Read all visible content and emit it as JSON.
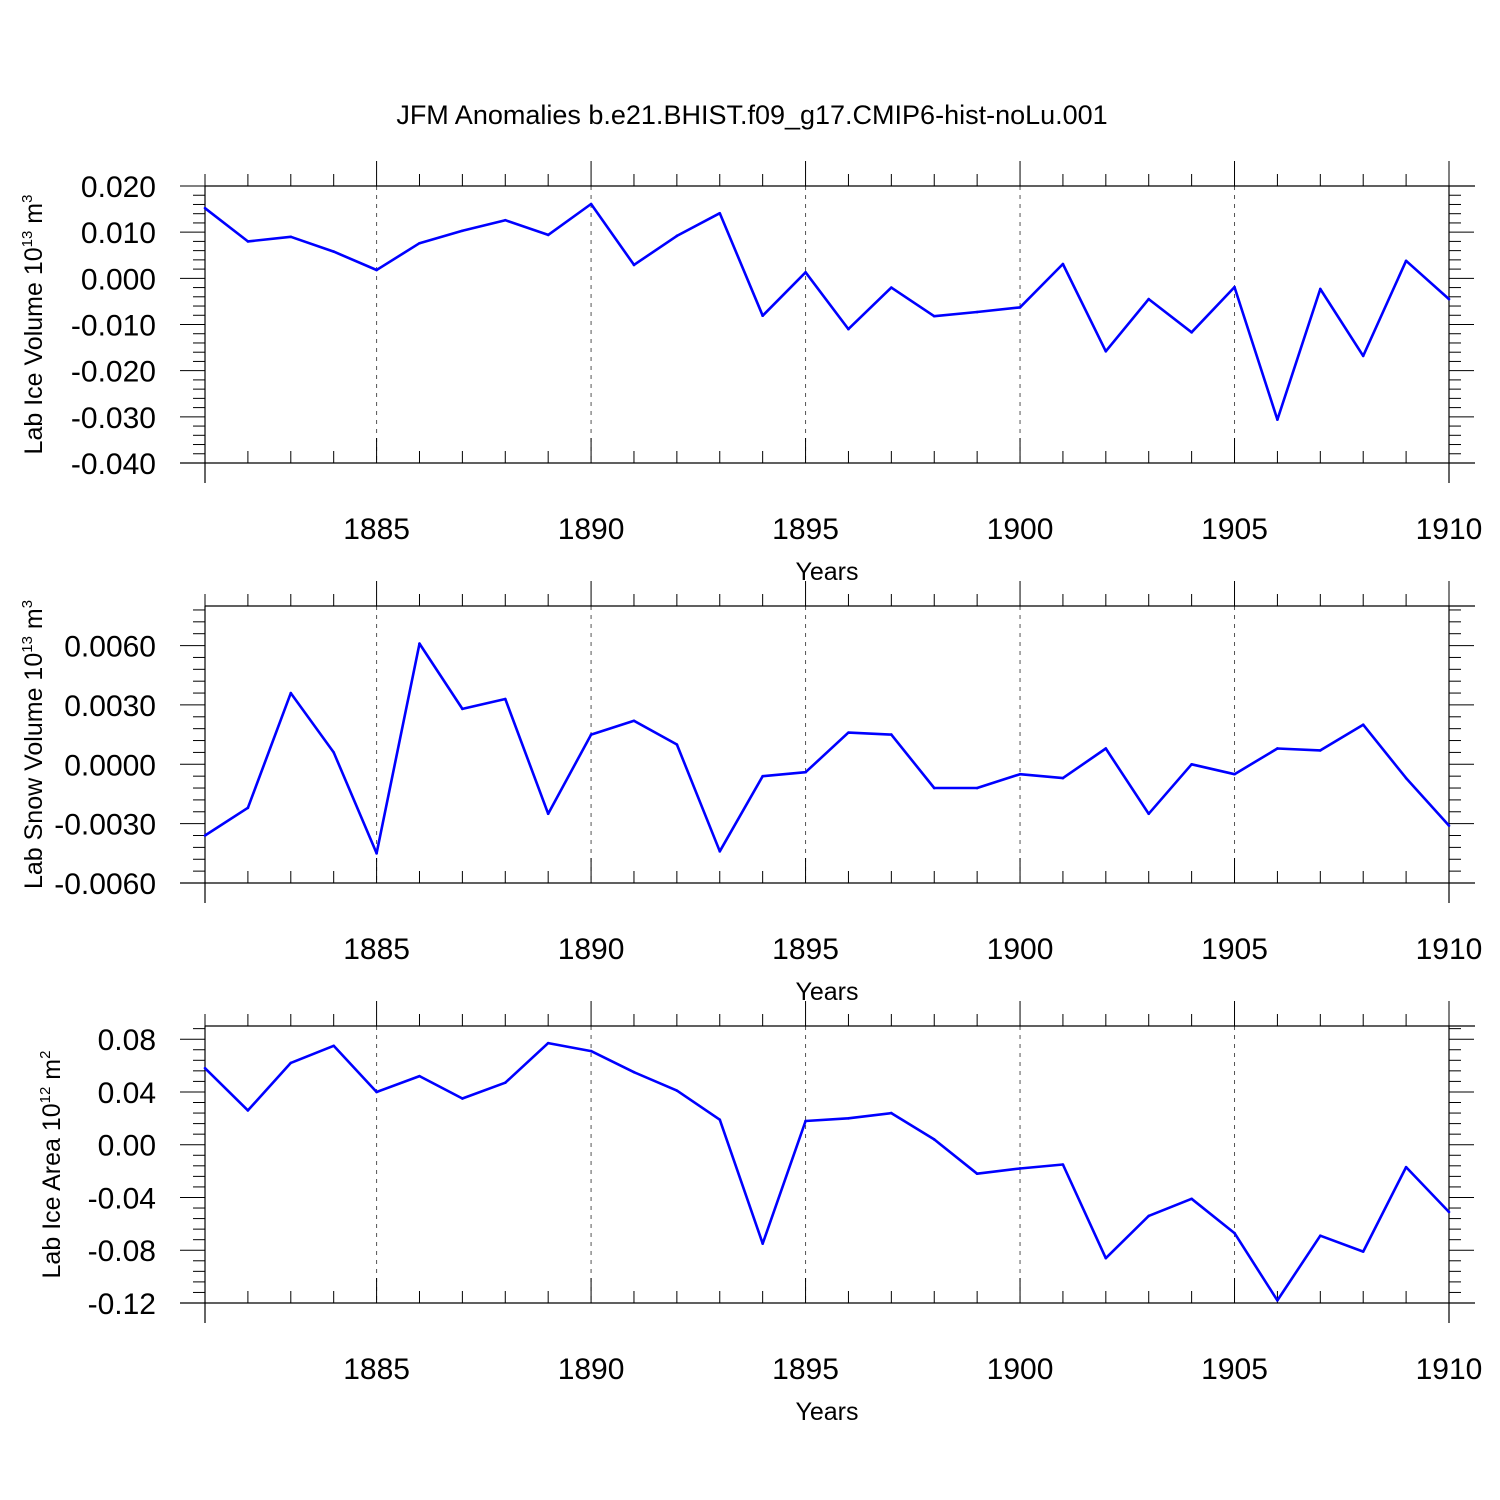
{
  "title": "JFM Anomalies b.e21.BHIST.f09_g17.CMIP6-hist-noLu.001",
  "chart_data": [
    {
      "type": "line",
      "title": "JFM Anomalies b.e21.BHIST.f09_g17.CMIP6-hist-noLu.001",
      "ylabel_main": "Lab Ice Volume 10",
      "ylabel_exp": "13",
      "ylabel_unit": " m",
      "ylabel_unit_exp": "3",
      "xlabel": "Years",
      "xlim": [
        1881,
        1910
      ],
      "ylim": [
        -0.04,
        0.02
      ],
      "xticks": [
        1885,
        1890,
        1895,
        1900,
        1905,
        1910
      ],
      "yticks": [
        -0.04,
        -0.03,
        -0.02,
        -0.01,
        0.0,
        0.01,
        0.02
      ],
      "ytick_labels": [
        "-0.040",
        "-0.030",
        "-0.020",
        "-0.010",
        "0.000",
        "0.010",
        "0.020"
      ],
      "grid": "dashed vertical at major x ticks",
      "line_color": "#0000ff",
      "x": [
        1881,
        1882,
        1883,
        1884,
        1885,
        1886,
        1887,
        1888,
        1889,
        1890,
        1891,
        1892,
        1893,
        1894,
        1895,
        1896,
        1897,
        1898,
        1899,
        1900,
        1901,
        1902,
        1903,
        1904,
        1905,
        1906,
        1907,
        1908,
        1909,
        1910
      ],
      "values": [
        0.0152,
        0.008,
        0.009,
        0.0058,
        0.0018,
        0.0076,
        0.0103,
        0.0126,
        0.0094,
        0.0161,
        0.0029,
        0.0092,
        0.0141,
        -0.0081,
        0.0013,
        -0.011,
        -0.002,
        -0.0082,
        -0.0073,
        -0.0063,
        0.0031,
        -0.0158,
        -0.0045,
        -0.0117,
        -0.0019,
        -0.0306,
        -0.0023,
        -0.0168,
        0.0038,
        -0.0045
      ]
    },
    {
      "type": "line",
      "ylabel_main": "Lab Snow Volume 10",
      "ylabel_exp": "13",
      "ylabel_unit": " m",
      "ylabel_unit_exp": "3",
      "xlabel": "Years",
      "xlim": [
        1881,
        1910
      ],
      "ylim": [
        -0.006,
        0.008
      ],
      "xticks": [
        1885,
        1890,
        1895,
        1900,
        1905,
        1910
      ],
      "yticks": [
        -0.006,
        -0.003,
        0.0,
        0.003,
        0.006
      ],
      "ytick_labels": [
        "-0.0060",
        "-0.0030",
        "0.0000",
        "0.0030",
        "0.0060"
      ],
      "grid": "dashed vertical at major x ticks",
      "line_color": "#0000ff",
      "x": [
        1881,
        1882,
        1883,
        1884,
        1885,
        1886,
        1887,
        1888,
        1889,
        1890,
        1891,
        1892,
        1893,
        1894,
        1895,
        1896,
        1897,
        1898,
        1899,
        1900,
        1901,
        1902,
        1903,
        1904,
        1905,
        1906,
        1907,
        1908,
        1909,
        1910
      ],
      "values": [
        -0.0036,
        -0.0022,
        0.0036,
        0.0006,
        -0.0045,
        0.0061,
        0.0028,
        0.0033,
        -0.0025,
        0.0015,
        0.0022,
        0.001,
        -0.0044,
        -0.0006,
        -0.0004,
        0.0016,
        0.0015,
        -0.0012,
        -0.0012,
        -0.0005,
        -0.0007,
        0.0008,
        -0.0025,
        0.0,
        -0.0005,
        0.0008,
        0.0007,
        0.002,
        -0.0007,
        -0.0031
      ]
    },
    {
      "type": "line",
      "ylabel_main": "Lab Ice Area 10",
      "ylabel_exp": "12",
      "ylabel_unit": " m",
      "ylabel_unit_exp": "2",
      "xlabel": "Years",
      "xlim": [
        1881,
        1910
      ],
      "ylim": [
        -0.12,
        0.09
      ],
      "xticks": [
        1885,
        1890,
        1895,
        1900,
        1905,
        1910
      ],
      "yticks": [
        -0.12,
        -0.08,
        -0.04,
        0.0,
        0.04,
        0.08
      ],
      "ytick_labels": [
        "-0.12",
        "-0.08",
        "-0.04",
        "0.00",
        "0.04",
        "0.08"
      ],
      "grid": "dashed vertical at major x ticks",
      "line_color": "#0000ff",
      "x": [
        1881,
        1882,
        1883,
        1884,
        1885,
        1886,
        1887,
        1888,
        1889,
        1890,
        1891,
        1892,
        1893,
        1894,
        1895,
        1896,
        1897,
        1898,
        1899,
        1900,
        1901,
        1902,
        1903,
        1904,
        1905,
        1906,
        1907,
        1908,
        1909,
        1910
      ],
      "values": [
        0.058,
        0.026,
        0.062,
        0.075,
        0.04,
        0.052,
        0.035,
        0.047,
        0.077,
        0.071,
        0.055,
        0.041,
        0.019,
        -0.075,
        0.018,
        0.02,
        0.024,
        0.004,
        -0.022,
        -0.018,
        -0.015,
        -0.086,
        -0.054,
        -0.041,
        -0.067,
        -0.118,
        -0.069,
        -0.081,
        -0.017,
        -0.051
      ]
    }
  ]
}
